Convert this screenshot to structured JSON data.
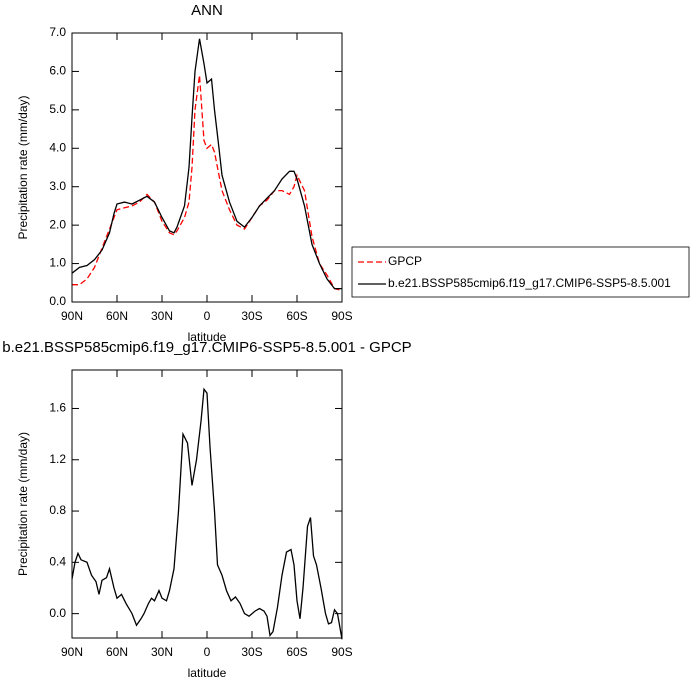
{
  "chart_data": [
    {
      "type": "line",
      "title": "ANN",
      "xlabel": "latitude",
      "ylabel": "Precipitation rate (mm/day)",
      "xlim": [
        90,
        -90
      ],
      "ylim": [
        0,
        7
      ],
      "xticks": [
        {
          "value": 90,
          "label": "90N"
        },
        {
          "value": 60,
          "label": "60N"
        },
        {
          "value": 30,
          "label": "30N"
        },
        {
          "value": 0,
          "label": "0"
        },
        {
          "value": -30,
          "label": "30S"
        },
        {
          "value": -60,
          "label": "60S"
        },
        {
          "value": -90,
          "label": "90S"
        }
      ],
      "yticks": [
        {
          "value": 0,
          "label": "0.0"
        },
        {
          "value": 1,
          "label": "1.0"
        },
        {
          "value": 2,
          "label": "2.0"
        },
        {
          "value": 3,
          "label": "3.0"
        },
        {
          "value": 4,
          "label": "4.0"
        },
        {
          "value": 5,
          "label": "5.0"
        },
        {
          "value": 6,
          "label": "6.0"
        },
        {
          "value": 7,
          "label": "7.0"
        }
      ],
      "x": [
        90,
        85,
        80,
        75,
        70,
        65,
        62,
        60,
        55,
        50,
        45,
        40,
        35,
        30,
        25,
        22,
        20,
        15,
        12,
        10,
        8,
        5,
        2,
        0,
        -3,
        -5,
        -8,
        -10,
        -15,
        -20,
        -25,
        -30,
        -35,
        -40,
        -45,
        -50,
        -55,
        -58,
        -60,
        -65,
        -70,
        -75,
        -80,
        -85,
        -90
      ],
      "series": [
        {
          "name": "GPCP",
          "color": "#ff0000",
          "dashed": true,
          "values": [
            0.45,
            0.45,
            0.6,
            0.9,
            1.4,
            1.9,
            2.2,
            2.4,
            2.45,
            2.5,
            2.6,
            2.8,
            2.6,
            2.1,
            1.8,
            1.75,
            1.85,
            2.2,
            2.6,
            3.5,
            5.0,
            5.9,
            4.2,
            4.0,
            4.1,
            3.9,
            3.3,
            2.9,
            2.4,
            2.0,
            1.9,
            2.2,
            2.5,
            2.65,
            2.9,
            2.9,
            2.8,
            3.0,
            3.3,
            2.9,
            1.7,
            1.0,
            0.7,
            0.35,
            0.3
          ]
        },
        {
          "name": "b.e21.BSSP585cmip6.f19_g17.CMIP6-SSP5-8.5.001",
          "color": "#000000",
          "dashed": false,
          "values": [
            0.75,
            0.9,
            0.95,
            1.1,
            1.35,
            1.8,
            2.3,
            2.55,
            2.6,
            2.55,
            2.65,
            2.75,
            2.6,
            2.2,
            1.85,
            1.8,
            1.95,
            2.5,
            3.5,
            4.8,
            6.0,
            6.85,
            6.2,
            5.7,
            5.8,
            5.0,
            4.0,
            3.3,
            2.6,
            2.1,
            1.95,
            2.2,
            2.5,
            2.7,
            2.9,
            3.2,
            3.4,
            3.4,
            3.2,
            2.5,
            1.5,
            1.0,
            0.6,
            0.35,
            0.35
          ]
        }
      ]
    },
    {
      "type": "line",
      "title": "b.e21.BSSP585cmip6.f19_g17.CMIP6-SSP5-8.5.001 - GPCP",
      "xlabel": "latitude",
      "ylabel": "Precipitation rate (mm/day)",
      "xlim": [
        90,
        -90
      ],
      "ylim": [
        -0.19,
        1.9
      ],
      "xticks": [
        {
          "value": 90,
          "label": "90N"
        },
        {
          "value": 60,
          "label": "60N"
        },
        {
          "value": 30,
          "label": "30N"
        },
        {
          "value": 0,
          "label": "0"
        },
        {
          "value": -30,
          "label": "30S"
        },
        {
          "value": -60,
          "label": "60S"
        },
        {
          "value": -90,
          "label": "90S"
        }
      ],
      "yticks": [
        {
          "value": 0,
          "label": "0.0"
        },
        0.4,
        0.8,
        1.2,
        1.6
      ],
      "x": [
        90,
        88,
        86,
        84,
        80,
        77,
        74,
        72,
        70,
        67,
        65,
        62,
        60,
        57,
        54,
        50,
        47,
        44,
        42,
        39,
        37,
        35,
        32,
        30,
        27,
        25,
        22,
        19,
        16,
        13,
        10,
        7,
        4,
        2,
        0,
        -2,
        -5,
        -7,
        -10,
        -13,
        -16,
        -19,
        -22,
        -25,
        -28,
        -32,
        -35,
        -38,
        -40,
        -42,
        -44,
        -47,
        -50,
        -53,
        -56,
        -58,
        -60,
        -62,
        -64,
        -67,
        -69,
        -71,
        -73,
        -76,
        -79,
        -81,
        -83,
        -85,
        -87,
        -90
      ],
      "color": "#000000",
      "values": [
        0.27,
        0.4,
        0.47,
        0.42,
        0.4,
        0.3,
        0.25,
        0.15,
        0.26,
        0.28,
        0.35,
        0.2,
        0.12,
        0.15,
        0.08,
        0.0,
        -0.09,
        -0.04,
        0.0,
        0.08,
        0.12,
        0.1,
        0.18,
        0.12,
        0.1,
        0.18,
        0.35,
        0.8,
        1.4,
        1.33,
        1.0,
        1.2,
        1.5,
        1.75,
        1.72,
        1.3,
        0.8,
        0.38,
        0.3,
        0.18,
        0.1,
        0.13,
        0.08,
        0.0,
        -0.02,
        0.02,
        0.04,
        0.02,
        -0.02,
        -0.17,
        -0.14,
        0.05,
        0.3,
        0.48,
        0.5,
        0.38,
        0.1,
        -0.04,
        0.2,
        0.68,
        0.75,
        0.45,
        0.38,
        0.2,
        0.0,
        -0.08,
        -0.07,
        0.03,
        0.0,
        -0.2
      ]
    }
  ]
}
